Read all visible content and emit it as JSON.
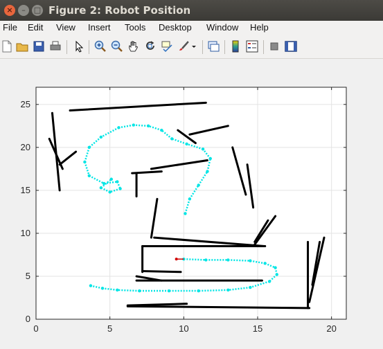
{
  "window": {
    "title": "Figure 2: Robot Position"
  },
  "menu": [
    "File",
    "Edit",
    "View",
    "Insert",
    "Tools",
    "Desktop",
    "Window",
    "Help"
  ],
  "toolbar": {
    "icons": [
      "new-figure-icon",
      "open-file-icon",
      "save-icon",
      "print-icon",
      "pointer-icon",
      "zoom-in-icon",
      "zoom-out-icon",
      "pan-icon",
      "rotate-icon",
      "data-cursor-icon",
      "brush-icon",
      "dropdown-arrow-icon",
      "link-plot-icon",
      "colorbar-icon",
      "legend-icon",
      "hide-plot-tools-icon",
      "show-plot-tools-icon"
    ]
  },
  "chart_data": {
    "type": "scatter",
    "title": "",
    "xlabel": "",
    "ylabel": "",
    "xlim": [
      0,
      21
    ],
    "ylim": [
      0,
      27
    ],
    "xticks": [
      0,
      5,
      10,
      15,
      20
    ],
    "yticks": [
      0,
      5,
      10,
      15,
      20,
      25
    ],
    "grid": true,
    "x_tick_labels": [
      "0",
      "5",
      "10",
      "15",
      "20"
    ],
    "y_tick_labels": [
      "0",
      "5",
      "10",
      "15",
      "20",
      "25"
    ],
    "colors": {
      "walls": "#000000",
      "path": "#00e5e5",
      "robot": "#d00000"
    },
    "series": [
      {
        "label": "obstacles",
        "color": "#000000",
        "segments": [
          [
            [
              2.3,
              24.3
            ],
            [
              11.5,
              25.2
            ]
          ],
          [
            [
              1.1,
              24
            ],
            [
              1.6,
              15
            ]
          ],
          [
            [
              0.9,
              21
            ],
            [
              1.8,
              17.5
            ]
          ],
          [
            [
              1.6,
              18
            ],
            [
              2.7,
              19.5
            ]
          ],
          [
            [
              10.4,
              21.5
            ],
            [
              13,
              22.5
            ]
          ],
          [
            [
              9.6,
              22
            ],
            [
              10.8,
              20.5
            ]
          ],
          [
            [
              7.8,
              17.5
            ],
            [
              11.6,
              18.5
            ]
          ],
          [
            [
              6.5,
              17
            ],
            [
              8.5,
              17.2
            ]
          ],
          [
            [
              6.8,
              17
            ],
            [
              6.8,
              14.3
            ]
          ],
          [
            [
              13.3,
              20
            ],
            [
              14.2,
              14.5
            ]
          ],
          [
            [
              14.3,
              18
            ],
            [
              14.7,
              13
            ]
          ],
          [
            [
              8.2,
              14
            ],
            [
              7.8,
              9.5
            ]
          ],
          [
            [
              8,
              9.5
            ],
            [
              15.5,
              8.5
            ]
          ],
          [
            [
              14.8,
              9
            ],
            [
              15.7,
              11.5
            ]
          ],
          [
            [
              14.8,
              8.7
            ],
            [
              16.2,
              12
            ]
          ],
          [
            [
              7.2,
              8.5
            ],
            [
              15.5,
              8.5
            ]
          ],
          [
            [
              7.2,
              8.5
            ],
            [
              7.2,
              5.5
            ]
          ],
          [
            [
              7.2,
              5.6
            ],
            [
              9.8,
              5.5
            ]
          ],
          [
            [
              6.8,
              5
            ],
            [
              8.5,
              4.5
            ]
          ],
          [
            [
              6.8,
              4.5
            ],
            [
              15.3,
              4.5
            ]
          ],
          [
            [
              6.2,
              1.6
            ],
            [
              10.2,
              1.8
            ]
          ],
          [
            [
              6.2,
              1.5
            ],
            [
              18.5,
              1.3
            ]
          ],
          [
            [
              18.4,
              1.3
            ],
            [
              18.4,
              9
            ]
          ],
          [
            [
              18.5,
              2
            ],
            [
              19.5,
              9.5
            ]
          ],
          [
            [
              18.7,
              4
            ],
            [
              19.2,
              9
            ]
          ]
        ]
      },
      {
        "label": "robot-path",
        "color": "#00e5e5",
        "points": [
          [
            10.1,
            12.3
          ],
          [
            10.4,
            14
          ],
          [
            11,
            15.6
          ],
          [
            11.6,
            17.2
          ],
          [
            11.8,
            18.7
          ],
          [
            11.3,
            19.8
          ],
          [
            10.2,
            20.4
          ],
          [
            9.2,
            21
          ],
          [
            8.5,
            22
          ],
          [
            7.6,
            22.5
          ],
          [
            6.6,
            22.6
          ],
          [
            5.6,
            22.3
          ],
          [
            4.4,
            21.2
          ],
          [
            3.6,
            20
          ],
          [
            3.3,
            18.3
          ],
          [
            3.6,
            16.7
          ],
          [
            4.6,
            15.8
          ],
          [
            5.5,
            16
          ],
          [
            5.7,
            15.2
          ],
          [
            5,
            14.8
          ],
          [
            4.4,
            15.3
          ],
          [
            5.1,
            16.3
          ]
        ]
      },
      {
        "label": "robot-path-lower",
        "color": "#00e5e5",
        "points": [
          [
            10,
            7
          ],
          [
            11.5,
            6.9
          ],
          [
            13,
            6.9
          ],
          [
            14.5,
            6.8
          ],
          [
            15.5,
            6.5
          ],
          [
            16.2,
            6
          ],
          [
            16.3,
            5.2
          ],
          [
            15.8,
            4.4
          ],
          [
            14.5,
            3.7
          ],
          [
            13,
            3.4
          ],
          [
            11,
            3.3
          ],
          [
            9,
            3.3
          ],
          [
            7,
            3.3
          ],
          [
            5.5,
            3.4
          ],
          [
            4.5,
            3.6
          ],
          [
            3.7,
            3.9
          ]
        ]
      },
      {
        "label": "robot",
        "color": "#d00000",
        "points": [
          [
            9.5,
            7
          ],
          [
            10,
            7
          ]
        ]
      }
    ]
  }
}
